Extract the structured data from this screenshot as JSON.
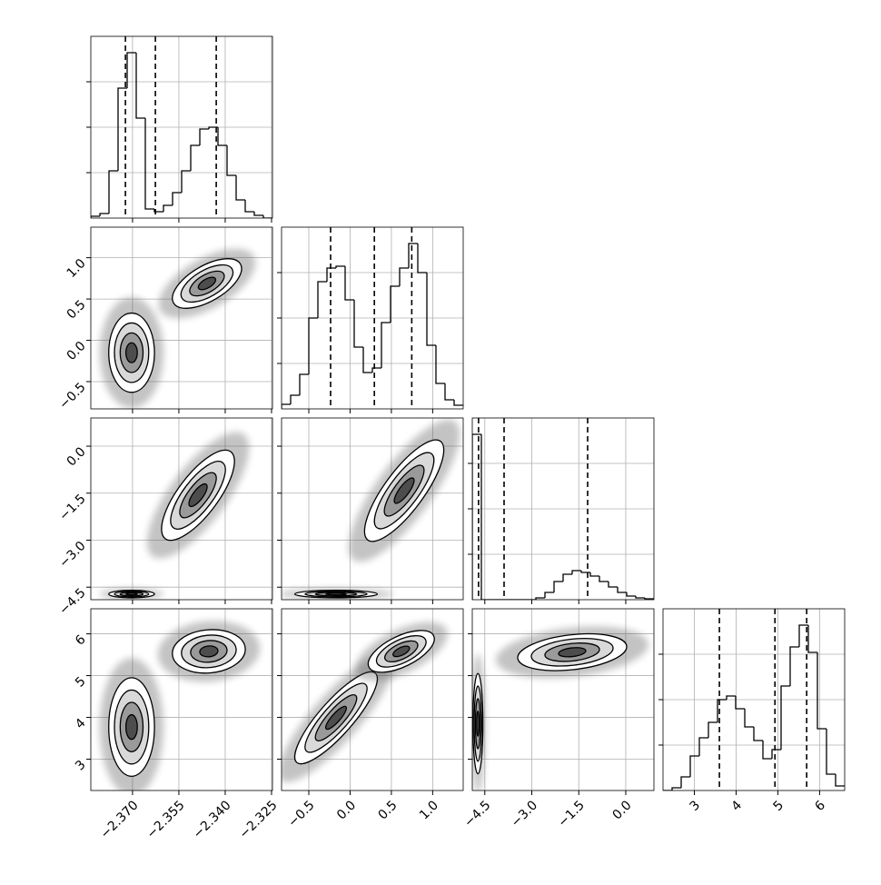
{
  "chart_data": {
    "type": "corner",
    "color": "#000000",
    "grid": true,
    "hist_ylim": [
      0,
      200
    ],
    "hist_yticks": [
      50,
      100,
      150
    ],
    "levels": [
      0.5,
      1,
      1.5,
      2
    ],
    "params": [
      {
        "lim": [
          -2.3835,
          -2.3247
        ],
        "ticks": [
          {
            "value": -2.37,
            "label": "−2.370"
          },
          {
            "value": -2.355,
            "label": "−2.355"
          },
          {
            "value": -2.34,
            "label": "−2.340"
          },
          {
            "value": -2.325,
            "label": "−2.325"
          }
        ],
        "bins": [
          -2.3835,
          -2.38056,
          -2.37762,
          -2.37468,
          -2.37174,
          -2.3688,
          -2.36586,
          -2.36292,
          -2.35998,
          -2.35704,
          -2.3541,
          -2.35116,
          -2.34822,
          -2.34528,
          -2.34234,
          -2.3394,
          -2.33646,
          -2.33352,
          -2.33058,
          -2.32764,
          -2.3247
        ],
        "counts": [
          2,
          5,
          52,
          143,
          182,
          110,
          10,
          7,
          14,
          28,
          52,
          80,
          98,
          100,
          80,
          47,
          20,
          7,
          3,
          0
        ],
        "quantiles": [
          -2.3723,
          -2.3626,
          -2.3429
        ]
      },
      {
        "lim": [
          -0.83,
          1.37
        ],
        "ticks": [
          {
            "value": -0.5,
            "label": "−0.5"
          },
          {
            "value": 0.0,
            "label": "0.0"
          },
          {
            "value": 0.5,
            "label": "0.5"
          },
          {
            "value": 1.0,
            "label": "1.0"
          }
        ],
        "bins": [
          -0.83,
          -0.72,
          -0.61,
          -0.5,
          -0.39,
          -0.28,
          -0.17,
          -0.06,
          0.05,
          0.16,
          0.27,
          0.38,
          0.49,
          0.6,
          0.71,
          0.82,
          0.93,
          1.04,
          1.15,
          1.26,
          1.37
        ],
        "counts": [
          5,
          15,
          38,
          100,
          140,
          155,
          157,
          120,
          68,
          40,
          45,
          95,
          135,
          155,
          182,
          150,
          70,
          28,
          10,
          4
        ],
        "quantiles": [
          -0.236,
          0.294,
          0.747
        ]
      },
      {
        "lim": [
          -4.9,
          0.9
        ],
        "ticks": [
          {
            "value": -4.5,
            "label": "−4.5"
          },
          {
            "value": -3.0,
            "label": "−3.0"
          },
          {
            "value": -1.5,
            "label": "−1.5"
          },
          {
            "value": 0.0,
            "label": "0.0"
          }
        ],
        "bins": [
          -4.9,
          -4.61,
          -4.32,
          -4.03,
          -3.74,
          -3.45,
          -3.16,
          -2.87,
          -2.58,
          -2.29,
          -2.0,
          -1.71,
          -1.42,
          -1.13,
          -0.84,
          -0.55,
          -0.26,
          0.03,
          0.32,
          0.61,
          0.9
        ],
        "counts": [
          182,
          0,
          0,
          0,
          0,
          0,
          0,
          2,
          8,
          20,
          28,
          32,
          30,
          26,
          20,
          14,
          8,
          4,
          2,
          1
        ],
        "quantiles": [
          -4.7,
          -3.885,
          -1.217
        ]
      },
      {
        "lim": [
          2.25,
          6.6
        ],
        "ticks": [
          3,
          4,
          5,
          6
        ],
        "bins": [
          2.25,
          2.4675,
          2.685,
          2.9025,
          3.12,
          3.3375,
          3.555,
          3.7725,
          3.99,
          4.2075,
          4.425,
          4.6425,
          4.86,
          5.0775,
          5.295,
          5.5125,
          5.73,
          5.9475,
          6.165,
          6.3825,
          6.6
        ],
        "counts": [
          0,
          3,
          15,
          38,
          58,
          75,
          100,
          104,
          90,
          70,
          55,
          35,
          45,
          115,
          158,
          182,
          152,
          68,
          18,
          5
        ],
        "quantiles": [
          3.6,
          4.93,
          5.69
        ]
      }
    ],
    "panels": [
      {
        "x": 0,
        "y": 1,
        "clusters": [
          {
            "mean": [
              -2.3703,
              -0.15
            ],
            "sd": [
              0.0037,
              0.24
            ],
            "corr": 0.0
          },
          {
            "mean": [
              -2.3459,
              0.688
            ],
            "sd": [
              0.0056,
              0.15
            ],
            "corr": 0.6
          }
        ]
      },
      {
        "x": 0,
        "y": 2,
        "clusters": [
          {
            "mean": [
              -2.3703,
              -4.72
            ],
            "sd": [
              0.0037,
              0.06
            ],
            "corr": 0.0
          },
          {
            "mean": [
              -2.3488,
              -1.565
            ],
            "sd": [
              0.0059,
              0.72
            ],
            "corr": 0.75
          }
        ]
      },
      {
        "x": 1,
        "y": 2,
        "clusters": [
          {
            "mean": [
              -0.17,
              -4.72
            ],
            "sd": [
              0.25,
              0.06
            ],
            "corr": 0.0
          },
          {
            "mean": [
              0.655,
              -1.42
            ],
            "sd": [
              0.24,
              0.81
            ],
            "corr": 0.8
          }
        ]
      },
      {
        "x": 0,
        "y": 3,
        "clusters": [
          {
            "mean": [
              -2.3703,
              3.77
            ],
            "sd": [
              0.0037,
              0.59
            ],
            "corr": 0.0
          },
          {
            "mean": [
              -2.3453,
              5.58
            ],
            "sd": [
              0.0059,
              0.26
            ],
            "corr": 0.1
          }
        ]
      },
      {
        "x": 1,
        "y": 3,
        "clusters": [
          {
            "mean": [
              -0.17,
              3.99
            ],
            "sd": [
              0.25,
              0.55
            ],
            "corr": 0.85
          },
          {
            "mean": [
              0.62,
              5.58
            ],
            "sd": [
              0.2,
              0.25
            ],
            "corr": 0.6
          }
        ]
      },
      {
        "x": 2,
        "y": 3,
        "clusters": [
          {
            "mean": [
              -4.72,
              3.85
            ],
            "sd": [
              0.08,
              0.6
            ],
            "corr": 0.0
          },
          {
            "mean": [
              -1.71,
              5.56
            ],
            "sd": [
              0.87,
              0.22
            ],
            "corr": 0.3
          }
        ]
      }
    ]
  }
}
